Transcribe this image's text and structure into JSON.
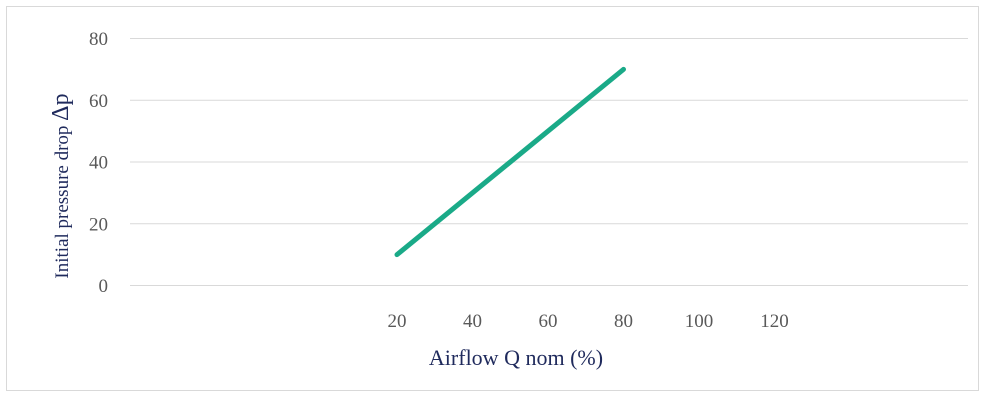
{
  "chart_data": {
    "type": "line",
    "x": [
      20,
      80
    ],
    "series": [
      {
        "values": [
          10,
          70
        ],
        "color": "#1aaa88"
      }
    ],
    "x_ticks": [
      "20",
      "40",
      "60",
      "80",
      "100",
      "120"
    ],
    "y_ticks": [
      "0",
      "20",
      "40",
      "60",
      "80"
    ],
    "xlabel": "Airflow Q nom (%)",
    "ylabel": "Initial pressure drop Δp",
    "ylabel_parts": {
      "text": "Initial pressure drop ",
      "symbol": "Δp"
    },
    "ylim": [
      0,
      80
    ],
    "grid": true,
    "legend": "none"
  }
}
